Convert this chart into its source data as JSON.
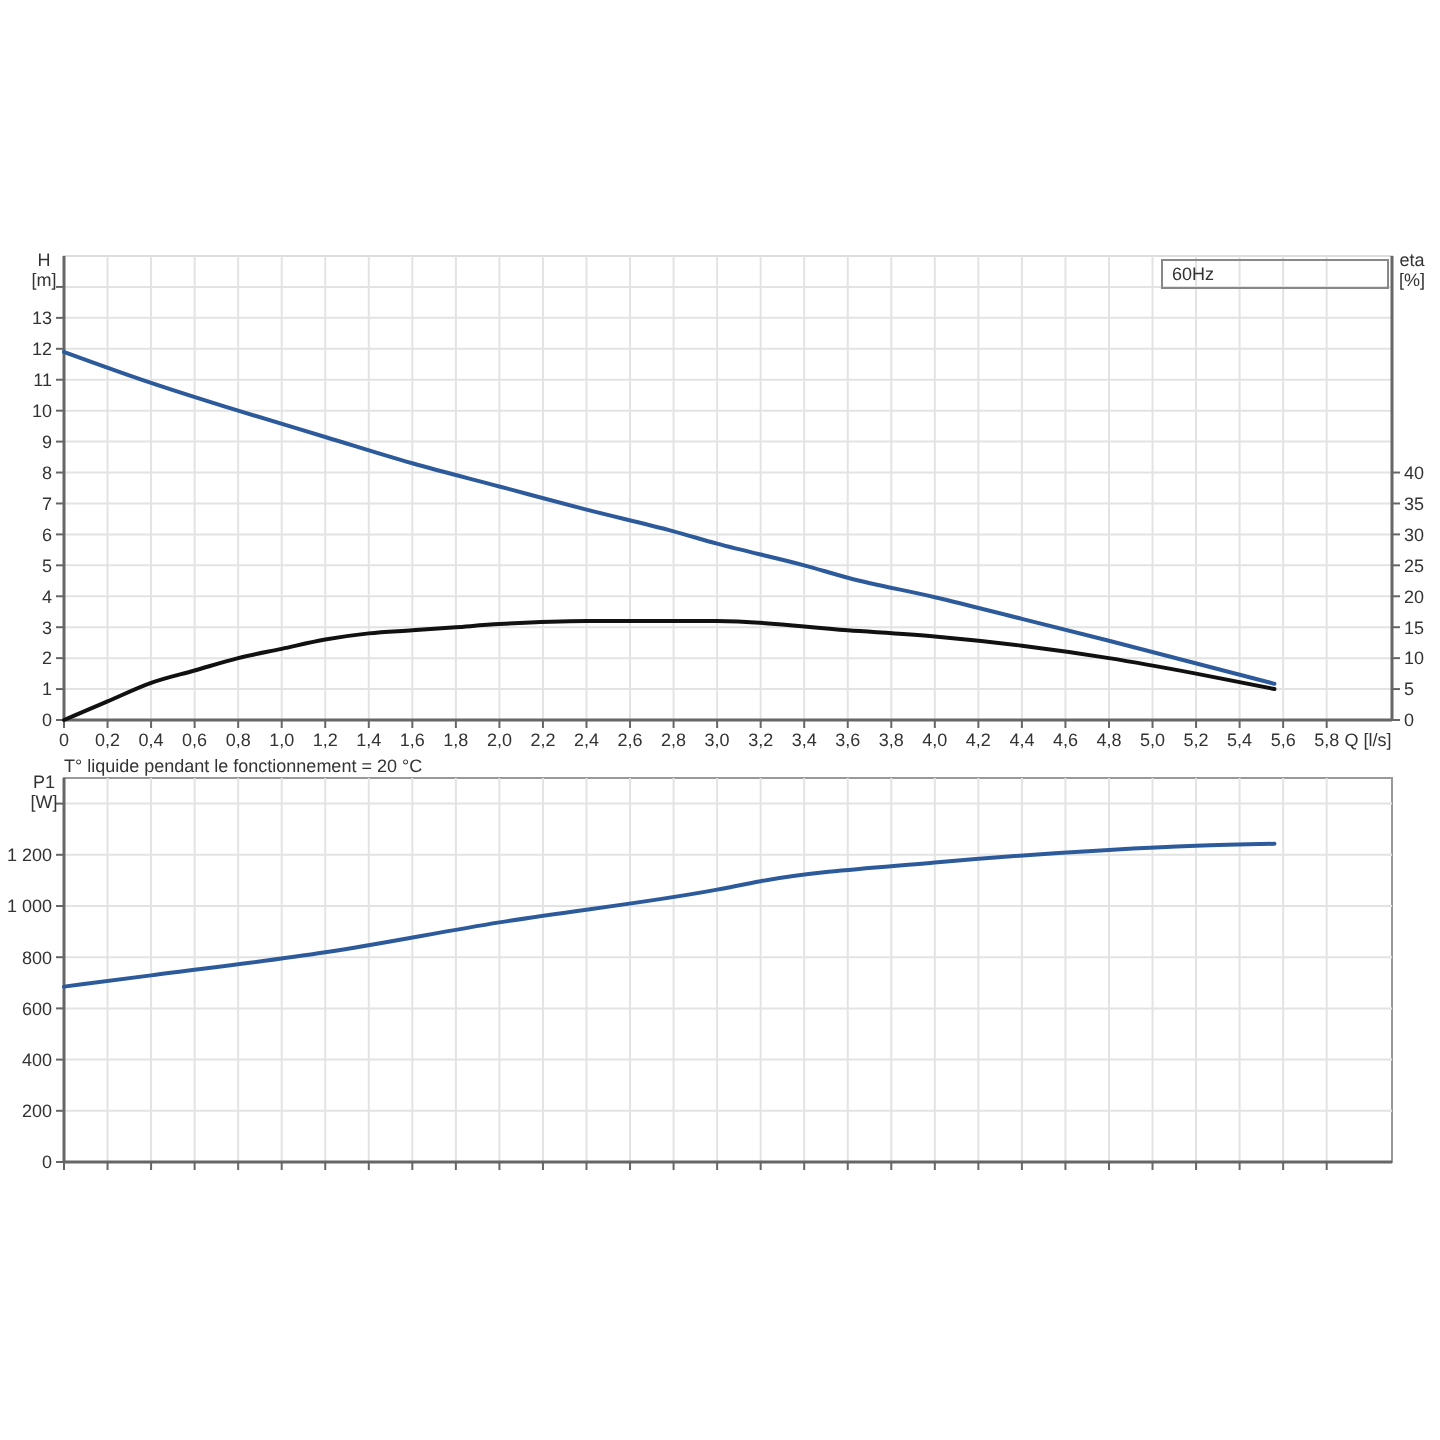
{
  "chart_data": [
    {
      "type": "line",
      "xlabel": "Q [l/s]",
      "ylabel": "H [m]",
      "y2label": "eta [%]",
      "annotations": [
        "60Hz",
        "T° liquide pendant le fonctionnement = 20 °C"
      ],
      "grid": true,
      "marker": "none",
      "line_style": "solid",
      "xlim": [
        0,
        6.1
      ],
      "xticks": [
        0,
        {
          "value": 0.2,
          "label": "0,2"
        },
        {
          "value": 0.4,
          "label": "0,4"
        },
        {
          "value": 0.6,
          "label": "0,6"
        },
        {
          "value": 0.8,
          "label": "0,8"
        },
        {
          "value": 1,
          "label": "1,0"
        },
        {
          "value": 1.2,
          "label": "1,2"
        },
        {
          "value": 1.4,
          "label": "1,4"
        },
        {
          "value": 1.6,
          "label": "1,6"
        },
        {
          "value": 1.8,
          "label": "1,8"
        },
        {
          "value": 2,
          "label": "2,0"
        },
        {
          "value": 2.2,
          "label": "2,2"
        },
        {
          "value": 2.4,
          "label": "2,4"
        },
        {
          "value": 2.6,
          "label": "2,6"
        },
        {
          "value": 2.8,
          "label": "2,8"
        },
        {
          "value": 3,
          "label": "3,0"
        },
        {
          "value": 3.2,
          "label": "3,2"
        },
        {
          "value": 3.4,
          "label": "3,4"
        },
        {
          "value": 3.6,
          "label": "3,6"
        },
        {
          "value": 3.8,
          "label": "3,8"
        },
        {
          "value": 4,
          "label": "4,0"
        },
        {
          "value": 4.2,
          "label": "4,2"
        },
        {
          "value": 4.4,
          "label": "4,4"
        },
        {
          "value": 4.6,
          "label": "4,6"
        },
        {
          "value": 4.8,
          "label": "4,8"
        },
        {
          "value": 5,
          "label": "5,0"
        },
        {
          "value": 5.2,
          "label": "5,2"
        },
        {
          "value": 5.4,
          "label": "5,4"
        },
        {
          "value": 5.6,
          "label": "5,6"
        },
        {
          "value": 5.8,
          "label": "5,8"
        }
      ],
      "ylim": [
        0,
        15
      ],
      "yticks": [
        0,
        1,
        2,
        3,
        4,
        5,
        6,
        7,
        8,
        9,
        10,
        11,
        12,
        13,
        {
          "value": 14,
          "label": null
        }
      ],
      "y2lim": [
        0,
        75
      ],
      "y2ticks": [
        0,
        5,
        10,
        15,
        20,
        25,
        30,
        35,
        40
      ],
      "series": [
        {
          "color": "#2d5a9a",
          "x": [
            0,
            0.4,
            0.8,
            1.2,
            1.6,
            2.0,
            2.4,
            2.8,
            3.0,
            3.4,
            3.6,
            4.0,
            4.4,
            4.8,
            5.56
          ],
          "values": [
            11.9,
            10.9,
            10.0,
            9.15,
            8.3,
            7.55,
            6.8,
            6.1,
            5.7,
            5.0,
            4.6,
            3.97,
            3.27,
            2.56,
            1.17
          ]
        },
        {
          "color": "#111111",
          "axis": "y2",
          "x": [
            0,
            0.2,
            0.4,
            0.6,
            0.8,
            1.0,
            1.2,
            1.4,
            1.6,
            1.8,
            2.0,
            2.4,
            2.6,
            2.8,
            3.0,
            3.6,
            4.0,
            4.4,
            4.8,
            5.2,
            5.56
          ],
          "values": [
            0,
            3,
            6,
            8,
            10,
            11.5,
            13,
            14,
            14.5,
            15,
            15.5,
            16,
            16,
            16,
            16,
            14.5,
            13.5,
            12,
            10,
            7.5,
            5
          ]
        }
      ]
    },
    {
      "type": "line",
      "ylabel": "P1 [W]",
      "grid": true,
      "marker": "none",
      "line_style": "solid",
      "tick_labels": "y",
      "xlim": [
        0,
        6.1
      ],
      "xticks": [
        0,
        0.2,
        0.4,
        0.6,
        0.8,
        1,
        1.2,
        1.4,
        1.6,
        1.8,
        2,
        2.2,
        2.4,
        2.6,
        2.8,
        3,
        3.2,
        3.4,
        3.6,
        3.8,
        4,
        4.2,
        4.4,
        4.6,
        4.8,
        5,
        5.2,
        5.4,
        5.6,
        5.8
      ],
      "ylim": [
        0,
        1500
      ],
      "yticks": [
        0,
        200,
        400,
        600,
        800,
        {
          "value": 1000,
          "label": "1 000"
        },
        {
          "value": 1200,
          "label": "1 200"
        },
        {
          "value": 1400,
          "label": null
        }
      ],
      "series": [
        {
          "color": "#2d5a9a",
          "x": [
            0,
            0.4,
            1.2,
            2.0,
            3.0,
            3.2,
            4.0,
            4.8,
            5.2,
            5.56
          ],
          "values": [
            685,
            729,
            819,
            936,
            1064,
            1097,
            1170,
            1219,
            1235,
            1243
          ]
        }
      ]
    }
  ]
}
